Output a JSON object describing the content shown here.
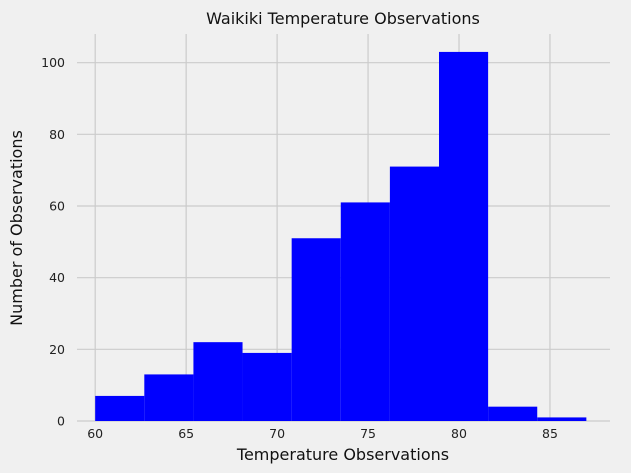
{
  "chart_data": {
    "type": "bar",
    "title": "Waikiki Temperature Observations",
    "xlabel": "Temperature Observations",
    "ylabel": "Number of Observations",
    "bin_edges": [
      60,
      62.7,
      65.4,
      68.1,
      70.8,
      73.5,
      76.2,
      78.9,
      81.6,
      84.3,
      87
    ],
    "values": [
      7,
      13,
      22,
      19,
      51,
      61,
      71,
      103,
      4,
      1
    ],
    "xlim": [
      59,
      88.3
    ],
    "ylim": [
      0,
      108
    ],
    "x_ticks": [
      60,
      65,
      70,
      75,
      80,
      85
    ],
    "y_ticks": [
      0,
      20,
      40,
      60,
      80,
      100
    ],
    "grid": true,
    "bar_color": "#0000ff",
    "background_color": "#f0f0f0",
    "grid_color": "#cbcbcb"
  }
}
